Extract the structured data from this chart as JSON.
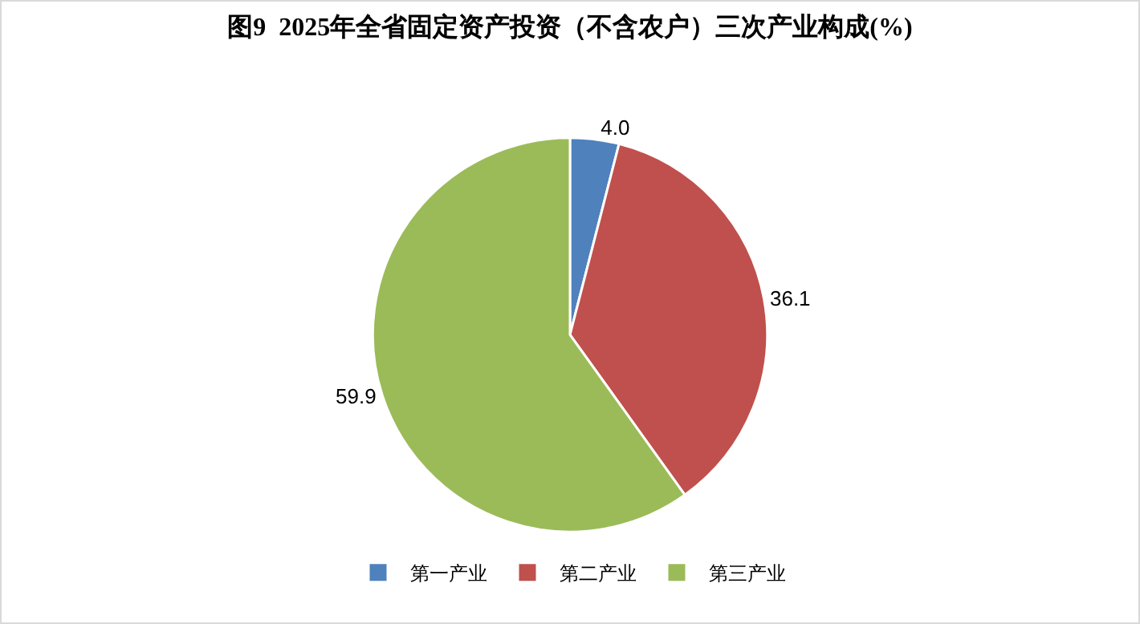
{
  "chart_data": {
    "type": "pie",
    "title": "图9  2025年全省固定资产投资（不含农户）三次产业构成(%)",
    "categories": [
      "第一产业",
      "第二产业",
      "第三产业"
    ],
    "values": [
      4.0,
      36.1,
      59.9
    ],
    "value_labels": [
      "4.0",
      "36.1",
      "59.9"
    ],
    "colors": [
      "#4f81bd",
      "#c0504d",
      "#9bbb59"
    ],
    "legend": "bottom"
  }
}
